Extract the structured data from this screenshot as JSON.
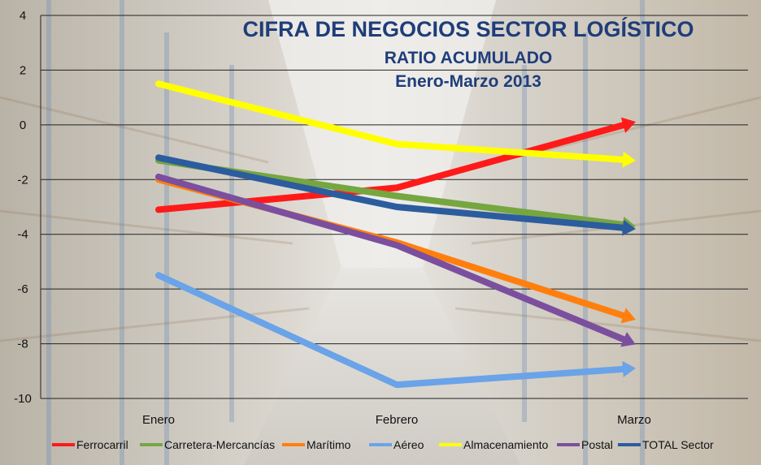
{
  "chart_data": {
    "type": "line",
    "title": "CIFRA DE NEGOCIOS SECTOR LOGÍSTICO",
    "subtitle": "RATIO ACUMULADO",
    "period": "Enero-Marzo 2013",
    "categories": [
      "Enero",
      "Febrero",
      "Marzo"
    ],
    "ylim": [
      -10,
      4
    ],
    "yticks": [
      4,
      2,
      0,
      -2,
      -4,
      -6,
      -8,
      -10
    ],
    "grid": true,
    "legend_position": "bottom",
    "series": [
      {
        "name": "Ferrocarril",
        "color": "#ff1a1a",
        "values": [
          -3.1,
          -2.3,
          0.1
        ]
      },
      {
        "name": "Carretera-Mercancías",
        "color": "#76a640",
        "values": [
          -1.3,
          -2.6,
          -3.7
        ]
      },
      {
        "name": "Marítimo",
        "color": "#ff7f0e",
        "values": [
          -2.0,
          -4.3,
          -7.1
        ]
      },
      {
        "name": "Aéreo",
        "color": "#6aa3e8",
        "values": [
          -5.5,
          -9.5,
          -8.9
        ]
      },
      {
        "name": "Almacenamiento",
        "color": "#ffff00",
        "values": [
          1.5,
          -0.7,
          -1.3
        ]
      },
      {
        "name": "Postal",
        "color": "#7b4f9e",
        "values": [
          -1.9,
          -4.4,
          -8.0
        ]
      },
      {
        "name": "TOTAL Sector",
        "color": "#2b5c9e",
        "values": [
          -1.2,
          -3.0,
          -3.8
        ]
      }
    ]
  }
}
